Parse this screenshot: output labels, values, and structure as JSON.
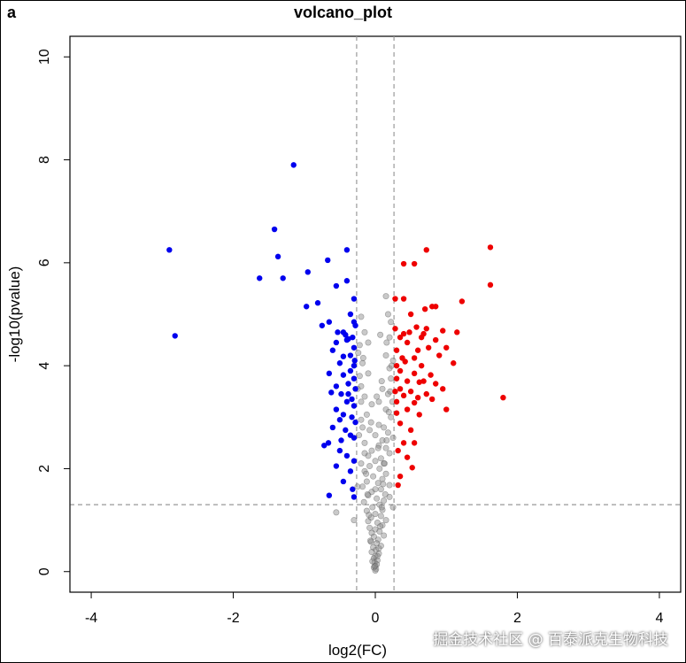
{
  "panel_label": "a",
  "watermark": "掘金技术社区 @ 百泰派克生物科技",
  "chart_data": {
    "type": "scatter",
    "title": "volcano_plot",
    "xlabel": "log2(FC)",
    "ylabel": "-log10(pvalue)",
    "xlim": [
      -4.3,
      4.3
    ],
    "ylim": [
      -0.4,
      10.4
    ],
    "x_ticks": [
      -4,
      -2,
      0,
      2,
      4
    ],
    "y_ticks": [
      0,
      2,
      4,
      6,
      8,
      10
    ],
    "x_tick_labels": [
      "-4",
      "-2",
      "0",
      "2",
      "4"
    ],
    "y_tick_labels": [
      "0",
      "2",
      "4",
      "6",
      "8",
      "10"
    ],
    "grid": false,
    "thresholds": {
      "fc": [
        -0.263,
        0.263
      ],
      "pvalue": 1.3
    },
    "colors": {
      "down": "#0000ee",
      "up": "#ee0000",
      "ns": "#888888",
      "threshold_line": "#999999"
    },
    "series": [
      {
        "group": "down",
        "points": [
          [
            -1.15,
            7.9
          ],
          [
            -2.9,
            6.25
          ],
          [
            -1.42,
            6.65
          ],
          [
            -1.37,
            6.12
          ],
          [
            -1.63,
            5.7
          ],
          [
            -1.3,
            5.7
          ],
          [
            -2.82,
            4.58
          ],
          [
            -0.95,
            5.82
          ],
          [
            -0.67,
            6.05
          ],
          [
            -0.4,
            6.25
          ],
          [
            -0.55,
            5.55
          ],
          [
            -0.4,
            5.65
          ],
          [
            -0.97,
            5.15
          ],
          [
            -0.81,
            5.22
          ],
          [
            -0.65,
            4.85
          ],
          [
            -0.75,
            4.78
          ],
          [
            -0.3,
            5.3
          ],
          [
            -0.35,
            5.0
          ],
          [
            -0.3,
            4.85
          ],
          [
            -0.28,
            4.78
          ],
          [
            -0.53,
            4.65
          ],
          [
            -0.45,
            4.65
          ],
          [
            -0.42,
            4.6
          ],
          [
            -0.38,
            4.52
          ],
          [
            -0.55,
            4.45
          ],
          [
            -0.4,
            4.5
          ],
          [
            -0.3,
            4.35
          ],
          [
            -0.35,
            4.2
          ],
          [
            -0.6,
            4.3
          ],
          [
            -0.45,
            4.18
          ],
          [
            -0.5,
            4.05
          ],
          [
            -0.3,
            4.0
          ],
          [
            -0.35,
            3.9
          ],
          [
            -0.65,
            3.85
          ],
          [
            -0.45,
            3.82
          ],
          [
            -0.3,
            3.75
          ],
          [
            -0.38,
            3.65
          ],
          [
            -0.28,
            3.55
          ],
          [
            -0.55,
            3.6
          ],
          [
            -0.48,
            3.45
          ],
          [
            -0.33,
            3.35
          ],
          [
            -0.62,
            3.48
          ],
          [
            -0.4,
            3.3
          ],
          [
            -0.3,
            3.22
          ],
          [
            -0.55,
            3.15
          ],
          [
            -0.45,
            3.05
          ],
          [
            -0.33,
            3.0
          ],
          [
            -0.28,
            2.9
          ],
          [
            -0.5,
            2.95
          ],
          [
            -0.6,
            2.8
          ],
          [
            -0.42,
            2.75
          ],
          [
            -0.35,
            2.65
          ],
          [
            -0.3,
            2.6
          ],
          [
            -0.48,
            2.55
          ],
          [
            -0.66,
            2.5
          ],
          [
            -0.72,
            2.45
          ],
          [
            -0.5,
            2.35
          ],
          [
            -0.4,
            2.25
          ],
          [
            -0.3,
            2.15
          ],
          [
            -0.55,
            2.05
          ],
          [
            -0.35,
            1.95
          ],
          [
            -0.45,
            1.75
          ],
          [
            -0.32,
            1.6
          ],
          [
            -0.65,
            1.48
          ],
          [
            -0.3,
            1.45
          ],
          [
            -0.38,
            3.45
          ],
          [
            -0.29,
            4.1
          ],
          [
            -0.32,
            4.55
          ]
        ]
      },
      {
        "group": "up",
        "points": [
          [
            1.62,
            6.3
          ],
          [
            1.62,
            5.57
          ],
          [
            1.22,
            5.25
          ],
          [
            1.8,
            3.38
          ],
          [
            0.72,
            6.25
          ],
          [
            0.4,
            5.98
          ],
          [
            0.55,
            5.98
          ],
          [
            0.28,
            5.3
          ],
          [
            0.4,
            5.3
          ],
          [
            0.8,
            5.15
          ],
          [
            0.85,
            5.15
          ],
          [
            0.5,
            5.0
          ],
          [
            0.7,
            5.1
          ],
          [
            1.15,
            4.65
          ],
          [
            0.72,
            4.72
          ],
          [
            0.95,
            4.68
          ],
          [
            0.48,
            4.65
          ],
          [
            0.4,
            4.62
          ],
          [
            0.35,
            4.55
          ],
          [
            0.65,
            4.55
          ],
          [
            0.85,
            4.5
          ],
          [
            0.45,
            4.45
          ],
          [
            0.3,
            4.3
          ],
          [
            0.6,
            4.3
          ],
          [
            0.75,
            4.35
          ],
          [
            1.0,
            4.35
          ],
          [
            0.9,
            4.2
          ],
          [
            0.55,
            4.15
          ],
          [
            0.42,
            4.08
          ],
          [
            0.3,
            4.0
          ],
          [
            0.65,
            4.0
          ],
          [
            0.35,
            3.9
          ],
          [
            0.55,
            3.85
          ],
          [
            0.78,
            3.82
          ],
          [
            1.1,
            4.05
          ],
          [
            0.3,
            3.75
          ],
          [
            0.45,
            3.7
          ],
          [
            0.62,
            3.68
          ],
          [
            0.85,
            3.65
          ],
          [
            0.35,
            3.55
          ],
          [
            0.28,
            3.5
          ],
          [
            0.5,
            3.5
          ],
          [
            0.72,
            3.45
          ],
          [
            0.4,
            3.42
          ],
          [
            0.6,
            3.38
          ],
          [
            0.95,
            3.55
          ],
          [
            0.3,
            3.3
          ],
          [
            0.55,
            3.28
          ],
          [
            0.8,
            3.35
          ],
          [
            0.45,
            3.15
          ],
          [
            0.3,
            3.08
          ],
          [
            0.62,
            3.05
          ],
          [
            1.0,
            3.15
          ],
          [
            0.35,
            2.88
          ],
          [
            0.5,
            2.75
          ],
          [
            0.4,
            2.5
          ],
          [
            0.55,
            2.5
          ],
          [
            0.32,
            2.35
          ],
          [
            0.45,
            2.22
          ],
          [
            0.52,
            2.02
          ],
          [
            0.35,
            1.85
          ],
          [
            0.32,
            1.68
          ],
          [
            0.68,
            4.62
          ],
          [
            0.58,
            4.75
          ],
          [
            0.28,
            4.72
          ],
          [
            0.38,
            4.15
          ],
          [
            0.68,
            3.7
          ]
        ]
      },
      {
        "group": "ns",
        "points": [
          [
            0.15,
            5.35
          ],
          [
            0.18,
            5.0
          ],
          [
            -0.2,
            4.95
          ],
          [
            0.22,
            4.85
          ],
          [
            -0.15,
            4.65
          ],
          [
            0.2,
            4.55
          ],
          [
            -0.22,
            4.4
          ],
          [
            0.15,
            4.2
          ],
          [
            0.25,
            4.1
          ],
          [
            -0.18,
            4.05
          ],
          [
            0.2,
            3.95
          ],
          [
            -0.1,
            3.85
          ],
          [
            0.22,
            3.75
          ],
          [
            -0.2,
            3.6
          ],
          [
            0.1,
            3.55
          ],
          [
            0.18,
            3.45
          ],
          [
            -0.15,
            3.4
          ],
          [
            0.05,
            3.3
          ],
          [
            -0.05,
            3.25
          ],
          [
            0.15,
            3.15
          ],
          [
            -0.12,
            3.05
          ],
          [
            0.22,
            3.0
          ],
          [
            -0.2,
            2.95
          ],
          [
            0.05,
            2.85
          ],
          [
            0.12,
            2.8
          ],
          [
            -0.08,
            2.75
          ],
          [
            0.18,
            2.7
          ],
          [
            0.0,
            2.65
          ],
          [
            0.1,
            2.55
          ],
          [
            -0.15,
            2.5
          ],
          [
            0.05,
            2.45
          ],
          [
            0.15,
            2.4
          ],
          [
            -0.05,
            2.35
          ],
          [
            0.2,
            2.3
          ],
          [
            -0.1,
            2.25
          ],
          [
            0.08,
            2.2
          ],
          [
            0.0,
            2.15
          ],
          [
            0.12,
            2.1
          ],
          [
            -0.08,
            2.05
          ],
          [
            0.06,
            2.0
          ],
          [
            -0.15,
            1.95
          ],
          [
            0.15,
            1.9
          ],
          [
            -0.03,
            1.85
          ],
          [
            0.1,
            1.8
          ],
          [
            -0.12,
            1.75
          ],
          [
            0.04,
            1.72
          ],
          [
            0.2,
            1.68
          ],
          [
            -0.18,
            1.65
          ],
          [
            0.08,
            1.6
          ],
          [
            -0.05,
            1.55
          ],
          [
            0.14,
            1.5
          ],
          [
            -0.1,
            1.48
          ],
          [
            0.02,
            1.42
          ],
          [
            0.12,
            1.38
          ],
          [
            -0.16,
            1.35
          ],
          [
            0.06,
            1.3
          ],
          [
            -0.04,
            1.25
          ],
          [
            0.1,
            1.2
          ],
          [
            -0.12,
            1.18
          ],
          [
            0.0,
            1.12
          ],
          [
            0.08,
            1.08
          ],
          [
            -0.06,
            1.05
          ],
          [
            0.15,
            1.0
          ],
          [
            -0.1,
            0.98
          ],
          [
            0.03,
            0.95
          ],
          [
            0.1,
            0.9
          ],
          [
            -0.08,
            0.85
          ],
          [
            0.0,
            0.82
          ],
          [
            0.06,
            0.78
          ],
          [
            -0.05,
            0.75
          ],
          [
            0.12,
            0.7
          ],
          [
            -0.02,
            0.68
          ],
          [
            0.04,
            0.62
          ],
          [
            -0.06,
            0.58
          ],
          [
            0.02,
            0.55
          ],
          [
            0.08,
            0.5
          ],
          [
            -0.03,
            0.47
          ],
          [
            0.01,
            0.42
          ],
          [
            -0.05,
            0.38
          ],
          [
            0.05,
            0.35
          ],
          [
            0.0,
            0.3
          ],
          [
            -0.02,
            0.26
          ],
          [
            0.03,
            0.22
          ],
          [
            -0.01,
            0.18
          ],
          [
            0.02,
            0.14
          ],
          [
            0.0,
            0.11
          ],
          [
            -0.02,
            0.08
          ],
          [
            0.01,
            0.05
          ],
          [
            0.0,
            0.02
          ],
          [
            -0.01,
            0.1
          ],
          [
            0.03,
            0.3
          ],
          [
            -0.04,
            0.2
          ],
          [
            0.05,
            0.45
          ],
          [
            -0.07,
            0.6
          ],
          [
            0.07,
            0.88
          ],
          [
            -0.09,
            1.1
          ],
          [
            0.09,
            1.25
          ],
          [
            -0.11,
            1.5
          ],
          [
            0.11,
            1.7
          ],
          [
            -0.13,
            1.9
          ],
          [
            0.13,
            2.1
          ],
          [
            -0.15,
            2.3
          ],
          [
            0.16,
            2.55
          ],
          [
            -0.18,
            2.8
          ],
          [
            0.19,
            3.1
          ],
          [
            -0.2,
            3.3
          ],
          [
            0.21,
            3.5
          ],
          [
            -0.22,
            3.8
          ],
          [
            0.23,
            4.0
          ],
          [
            -0.24,
            4.25
          ],
          [
            -0.55,
            1.15
          ],
          [
            -0.3,
            1.0
          ],
          [
            0.2,
            1.45
          ],
          [
            -0.25,
            1.65
          ],
          [
            0.25,
            1.25
          ],
          [
            -0.2,
            2.1
          ],
          [
            0.25,
            2.6
          ],
          [
            -0.23,
            2.65
          ],
          [
            0.24,
            3.3
          ],
          [
            -0.25,
            3.55
          ],
          [
            0.16,
            4.45
          ],
          [
            -0.17,
            4.15
          ],
          [
            0.0,
            1.6
          ],
          [
            0.04,
            2.4
          ],
          [
            -0.06,
            2.9
          ],
          [
            0.02,
            3.4
          ],
          [
            0.09,
            3.7
          ],
          [
            -0.1,
            4.45
          ],
          [
            0.07,
            4.6
          ]
        ]
      }
    ]
  }
}
